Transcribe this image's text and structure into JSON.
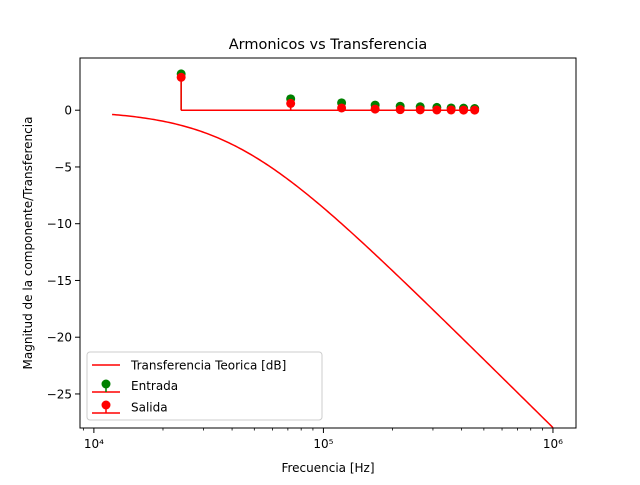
{
  "chart_data": {
    "type": "line",
    "title": "Armonicos vs Transferencia",
    "xlabel": "Frecuencia [Hz]",
    "ylabel": "Magnitud de la componente/Transferencia",
    "xscale": "log",
    "xlim": [
      8700,
      1260000
    ],
    "ylim": [
      -28.0,
      4.6
    ],
    "x_ticks": [
      10000,
      100000,
      1000000
    ],
    "x_tick_labels": [
      "10⁴",
      "10⁵",
      "10⁶"
    ],
    "y_ticks": [
      0,
      -5,
      -10,
      -15,
      -20,
      -25
    ],
    "y_tick_labels": [
      "0",
      "−5",
      "−10",
      "−15",
      "−20",
      "−25"
    ],
    "grid": false,
    "legend_position": "lower-left",
    "colors": {
      "transfer": "#ff0000",
      "input": "#008000",
      "output": "#ff0000"
    },
    "series": [
      {
        "name": "Transferencia Teorica [dB]",
        "kind": "line",
        "cutoff_hz": 40000,
        "x_range": [
          12000,
          1000000
        ]
      },
      {
        "name": "Entrada",
        "kind": "stem",
        "x": [
          24000,
          72000,
          120000,
          168000,
          216000,
          264000,
          312000,
          360000,
          408000,
          456000
        ],
        "values": [
          3.2,
          1.0,
          0.65,
          0.45,
          0.35,
          0.3,
          0.25,
          0.2,
          0.18,
          0.15
        ]
      },
      {
        "name": "Salida",
        "kind": "stem",
        "x": [
          24000,
          72000,
          120000,
          168000,
          216000,
          264000,
          312000,
          360000,
          408000,
          456000
        ],
        "values": [
          2.9,
          0.6,
          0.2,
          0.1,
          0.05,
          0.03,
          0.02,
          0.02,
          0.01,
          0.01
        ]
      }
    ]
  }
}
